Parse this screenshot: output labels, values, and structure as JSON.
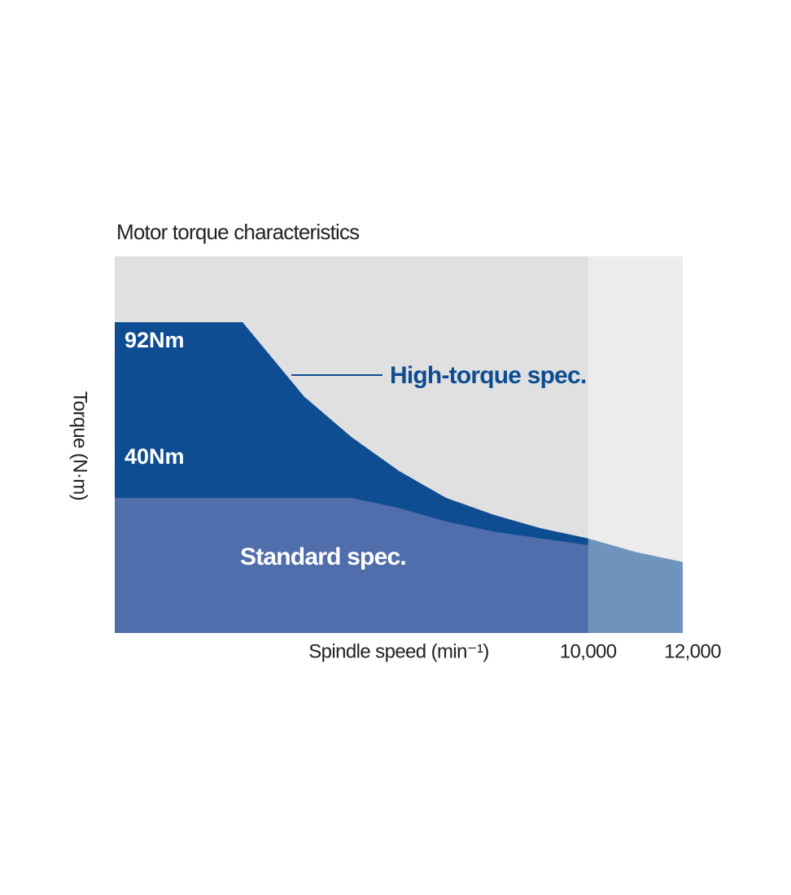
{
  "chart_data": {
    "type": "area",
    "title": "Motor torque characteristics",
    "xlabel": "Spindle speed (min⁻¹)",
    "ylabel": "Torque (N·m)",
    "x": [
      0,
      2700,
      4000,
      5000,
      6000,
      7000,
      8000,
      9000,
      10000,
      11000,
      12000
    ],
    "series": [
      {
        "name": "High-torque spec.",
        "color": "#0e4d92",
        "values": [
          92,
          92,
          70,
          58,
          48,
          40,
          35,
          31,
          28,
          24,
          21
        ],
        "value_labels": [
          "92Nm",
          null,
          null,
          null,
          null,
          null,
          null,
          null,
          null,
          null,
          null
        ]
      },
      {
        "name": "Standard spec.",
        "color": "#506eab",
        "values": [
          40,
          40,
          40,
          40,
          37,
          33,
          30,
          28,
          26,
          null,
          null
        ],
        "value_labels": [
          "40Nm",
          null,
          null,
          null,
          null,
          null,
          null,
          null,
          null,
          null,
          null
        ]
      }
    ],
    "xlim": [
      0,
      12000
    ],
    "ylim": [
      0,
      111.5
    ],
    "xticks": [
      {
        "value": 10000,
        "label": "10,000"
      },
      {
        "value": 12000,
        "label": "12,000"
      }
    ],
    "background": "#e0e0e0"
  }
}
